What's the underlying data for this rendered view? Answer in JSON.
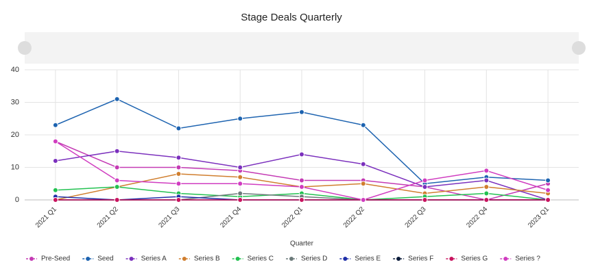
{
  "chart_data": {
    "type": "line",
    "title": "Stage Deals Quarterly",
    "x_label": "Quarter",
    "categories": [
      "2021 Q1",
      "2021 Q2",
      "2021 Q3",
      "2021 Q4",
      "2022 Q1",
      "2022 Q2",
      "2022 Q3",
      "2022 Q4",
      "2023 Q1"
    ],
    "ylim": [
      0,
      40
    ],
    "yticks": [
      0,
      10,
      20,
      30,
      40
    ],
    "grid": true,
    "legend": "bottom",
    "series": [
      {
        "name": "Pre-Seed",
        "color": "#c43ab4",
        "values": [
          18,
          10,
          10,
          9,
          6,
          6,
          4,
          0,
          5
        ]
      },
      {
        "name": "Seed",
        "color": "#1d63b0",
        "values": [
          23,
          31,
          22,
          25,
          27,
          23,
          5,
          7,
          6
        ]
      },
      {
        "name": "Series A",
        "color": "#7b30bd",
        "values": [
          12,
          15,
          13,
          10,
          14,
          11,
          4,
          6,
          0
        ]
      },
      {
        "name": "Series B",
        "color": "#d07e2e",
        "values": [
          0,
          4,
          8,
          7,
          4,
          5,
          2,
          4,
          2
        ]
      },
      {
        "name": "Series C",
        "color": "#22c150",
        "values": [
          3,
          4,
          2,
          1,
          2,
          0,
          1,
          2,
          0
        ]
      },
      {
        "name": "Series D",
        "color": "#6c7a7a",
        "values": [
          0,
          0,
          0,
          2,
          1,
          0,
          0,
          0,
          0
        ]
      },
      {
        "name": "Series E",
        "color": "#1f2fa8",
        "values": [
          1,
          0,
          1,
          0,
          0,
          0,
          0,
          0,
          0
        ]
      },
      {
        "name": "Series F",
        "color": "#0c1c3a",
        "values": [
          0,
          0,
          0,
          0,
          0,
          0,
          0,
          0,
          0
        ]
      },
      {
        "name": "Series G",
        "color": "#c8145f",
        "values": [
          0,
          0,
          0,
          0,
          0,
          0,
          0,
          0,
          0
        ]
      },
      {
        "name": "Series ?",
        "color": "#d03cc0",
        "values": [
          18,
          6,
          5,
          5,
          4,
          0,
          6,
          9,
          3
        ]
      }
    ]
  }
}
